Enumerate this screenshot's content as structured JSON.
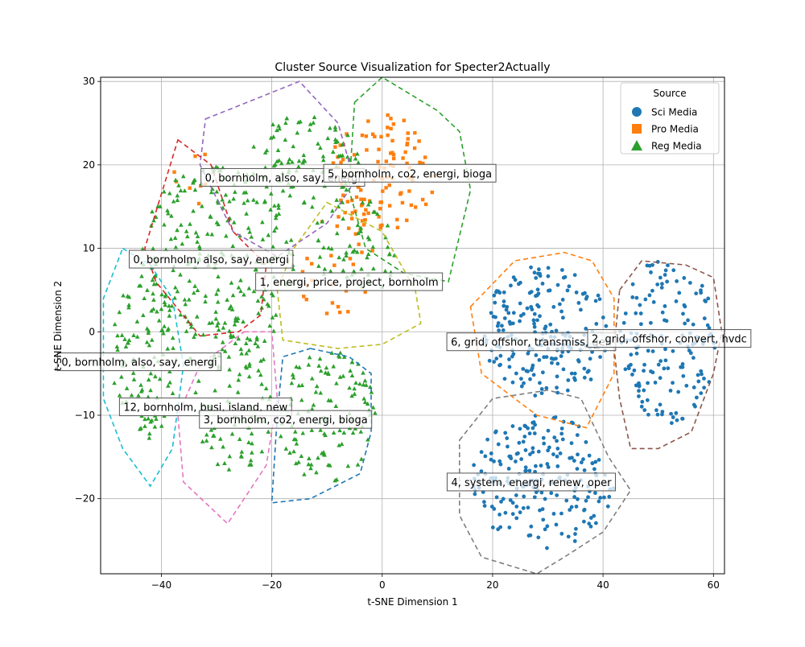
{
  "chart_data": {
    "type": "scatter",
    "title": "Cluster Source Visualization for Specter2Actually",
    "xlabel": "t-SNE Dimension 1",
    "ylabel": "t-SNE Dimension 2",
    "xlim": [
      -51,
      62
    ],
    "ylim": [
      -29,
      30.5
    ],
    "xticks": [
      -40,
      -20,
      0,
      20,
      40,
      60
    ],
    "yticks": [
      -20,
      -10,
      0,
      10,
      20,
      30
    ],
    "grid": true,
    "legend": {
      "title": "Source",
      "placement": "top-right",
      "entries": [
        {
          "label": "Sci Media",
          "marker": "circle",
          "color": "#1f77b4"
        },
        {
          "label": "Pro Media",
          "marker": "square",
          "color": "#ff7f0e"
        },
        {
          "label": "Reg Media",
          "marker": "triangle",
          "color": "#2ca02c"
        }
      ]
    },
    "series": [
      {
        "name": "Sci Media",
        "marker": "circle",
        "color": "#1f77b4",
        "regions": [
          {
            "cx": 30,
            "cy": 0,
            "rx": 12,
            "ry": 8,
            "n": 210
          },
          {
            "cx": 52,
            "cy": -1,
            "rx": 9,
            "ry": 10,
            "n": 150
          },
          {
            "cx": 29,
            "cy": -18,
            "rx": 13,
            "ry": 8,
            "n": 210
          }
        ]
      },
      {
        "name": "Pro Media",
        "marker": "square",
        "color": "#ff7f0e",
        "regions": [
          {
            "cx": 0,
            "cy": 19,
            "rx": 10,
            "ry": 7,
            "n": 110
          },
          {
            "cx": -8,
            "cy": 8,
            "rx": 8,
            "ry": 6,
            "n": 30
          },
          {
            "cx": -34,
            "cy": 18,
            "rx": 4,
            "ry": 4,
            "n": 8
          }
        ]
      },
      {
        "name": "Reg Media",
        "marker": "triangle",
        "color": "#2ca02c",
        "regions": [
          {
            "cx": -30,
            "cy": 8,
            "rx": 14,
            "ry": 12,
            "n": 240
          },
          {
            "cx": -43,
            "cy": -3,
            "rx": 6,
            "ry": 10,
            "n": 90
          },
          {
            "cx": -10,
            "cy": -10,
            "rx": 9,
            "ry": 8,
            "n": 120
          },
          {
            "cx": -27,
            "cy": -8,
            "rx": 7,
            "ry": 10,
            "n": 90
          },
          {
            "cx": -14,
            "cy": 20,
            "rx": 10,
            "ry": 6,
            "n": 90
          },
          {
            "cx": -5,
            "cy": 10,
            "rx": 8,
            "ry": 6,
            "n": 60
          }
        ]
      }
    ],
    "clusters": [
      {
        "label": "0, bornholm, also, say, energi",
        "color": "#9467bd",
        "label_pos": [
          -18,
          18.5
        ],
        "hull": [
          [
            -32,
            25.5
          ],
          [
            -15,
            30
          ],
          [
            -8,
            25
          ],
          [
            -5,
            18
          ],
          [
            -10,
            13
          ],
          [
            -19,
            9
          ],
          [
            -27,
            12
          ],
          [
            -33,
            20
          ]
        ]
      },
      {
        "label": "5, bornholm, co2, energi, bioga",
        "color": "#2ca02c",
        "label_pos": [
          5,
          19
        ],
        "hull": [
          [
            -5,
            27.5
          ],
          [
            0,
            30.5
          ],
          [
            10,
            26.5
          ],
          [
            14,
            24
          ],
          [
            16,
            17
          ],
          [
            12,
            6
          ],
          [
            4,
            7
          ],
          [
            -3,
            10
          ],
          [
            -6,
            17
          ]
        ]
      },
      {
        "label": "0, bornholm, also, say, energi",
        "color": "#d62728",
        "label_pos": [
          -31,
          8.7
        ],
        "hull": [
          [
            -37,
            23
          ],
          [
            -31,
            20
          ],
          [
            -27,
            12
          ],
          [
            -21,
            8
          ],
          [
            -22,
            2
          ],
          [
            -26,
            0
          ],
          [
            -33,
            -0.5
          ],
          [
            -41,
            6
          ],
          [
            -43,
            10
          ]
        ]
      },
      {
        "label": "1, energi, price, project, bornholm",
        "color": "#bcbd22",
        "label_pos": [
          -6,
          6
        ],
        "hull": [
          [
            -10,
            15.5
          ],
          [
            0,
            12
          ],
          [
            6,
            5
          ],
          [
            7,
            1
          ],
          [
            0,
            -1.5
          ],
          [
            -8,
            -2
          ],
          [
            -18,
            -1
          ],
          [
            -19,
            5
          ],
          [
            -16,
            10
          ]
        ]
      },
      {
        "label": "0, bornholm, also, say, energi",
        "color": "#17becf",
        "label_pos": [
          -44,
          -3.6
        ],
        "hull": [
          [
            -47,
            10
          ],
          [
            -42,
            8
          ],
          [
            -38,
            4
          ],
          [
            -36,
            -4
          ],
          [
            -38,
            -14
          ],
          [
            -42,
            -18.5
          ],
          [
            -47,
            -14
          ],
          [
            -50.5,
            -8
          ],
          [
            -50.5,
            4
          ]
        ]
      },
      {
        "label": "12, bornholm, busi, island, new",
        "color": "#e377c2",
        "label_pos": [
          -32,
          -9
        ],
        "hull": [
          [
            -25,
            0
          ],
          [
            -20,
            0
          ],
          [
            -19,
            -8
          ],
          [
            -21,
            -16
          ],
          [
            -28,
            -23
          ],
          [
            -36,
            -18
          ],
          [
            -37,
            -10
          ],
          [
            -33,
            -4
          ]
        ]
      },
      {
        "label": "3, bornholm, co2, energi, bioga",
        "color": "#1f77b4",
        "label_pos": [
          -17.5,
          -10.5
        ],
        "hull": [
          [
            -13,
            -2
          ],
          [
            -6,
            -3
          ],
          [
            -2,
            -5
          ],
          [
            -2,
            -12
          ],
          [
            -4,
            -17
          ],
          [
            -13,
            -20
          ],
          [
            -20,
            -20.5
          ],
          [
            -19,
            -10
          ],
          [
            -18,
            -3
          ]
        ]
      },
      {
        "label": "6, grid, offshor, transmiss, gen",
        "color": "#ff7f0e",
        "label_pos": [
          27,
          -1.2
        ],
        "hull": [
          [
            16,
            3
          ],
          [
            24,
            8.5
          ],
          [
            33,
            9.5
          ],
          [
            38,
            8.5
          ],
          [
            42,
            4
          ],
          [
            42,
            -5
          ],
          [
            37,
            -11.5
          ],
          [
            28,
            -10
          ],
          [
            18,
            -5
          ]
        ]
      },
      {
        "label": "2, grid, offshor, convert, hvdc",
        "color": "#8c564b",
        "label_pos": [
          52,
          -0.8
        ],
        "hull": [
          [
            43,
            5
          ],
          [
            47,
            8.5
          ],
          [
            55,
            8
          ],
          [
            60,
            6.5
          ],
          [
            61.5,
            0
          ],
          [
            60,
            -5
          ],
          [
            56,
            -12
          ],
          [
            50,
            -14
          ],
          [
            45,
            -14
          ],
          [
            43,
            -8
          ],
          [
            42,
            -2
          ]
        ]
      },
      {
        "label": "4, system, energi, renew, oper",
        "color": "#7f7f7f",
        "label_pos": [
          27,
          -18
        ],
        "hull": [
          [
            14,
            -13
          ],
          [
            20,
            -8
          ],
          [
            30,
            -7
          ],
          [
            36,
            -8
          ],
          [
            41,
            -15
          ],
          [
            45,
            -19
          ],
          [
            40,
            -24
          ],
          [
            33,
            -27
          ],
          [
            28,
            -29
          ],
          [
            18,
            -27
          ],
          [
            14,
            -22
          ]
        ]
      }
    ]
  }
}
